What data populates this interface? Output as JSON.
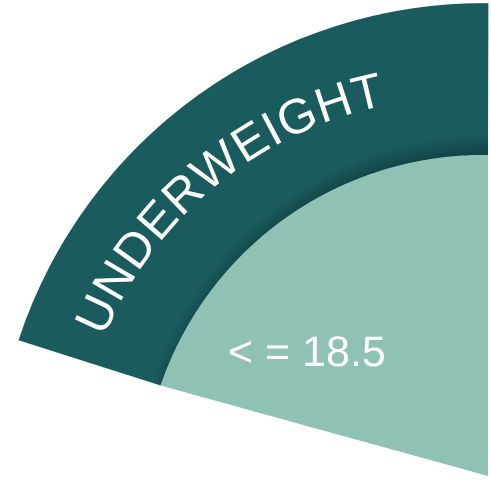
{
  "segment": {
    "category_label": "UNDERWEIGHT",
    "range_label": "< = 18.5"
  },
  "colors": {
    "outer_band": "#1a5c5e",
    "outer_band_edge": "#124446",
    "inner_wedge": "#8fc1b5",
    "text": "#ffffff"
  }
}
